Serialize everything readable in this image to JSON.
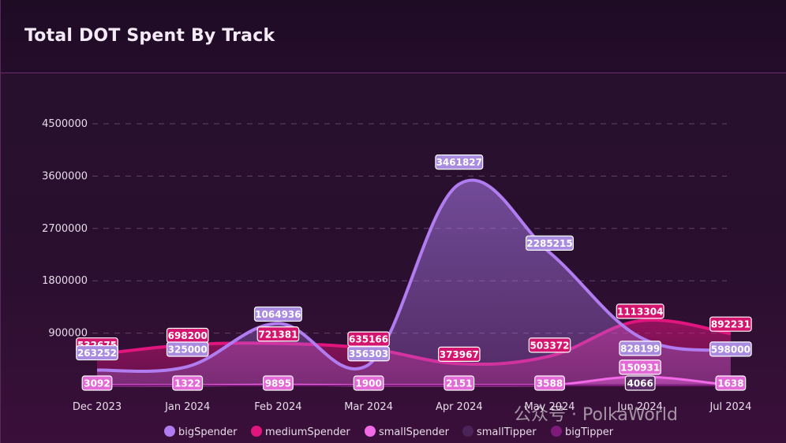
{
  "card": {
    "title": "Total DOT Spent By Track"
  },
  "watermark": "公众号 · PolkaWorld",
  "colors": {
    "bigSpender": "#b07cf0",
    "mediumSpender": "#e0157e",
    "smallSpender": "#f26ae8",
    "smallTipper": "#4a2458",
    "bigTipper": "#7e1a7c"
  },
  "chart_data": {
    "type": "area",
    "title": "Total DOT Spent By Track",
    "categories": [
      "Dec 2023",
      "Jan 2024",
      "Feb 2024",
      "Mar 2024",
      "Apr 2024",
      "May 2024",
      "Jun 2024",
      "Jul 2024"
    ],
    "ylim": [
      0,
      4500000
    ],
    "yticks": [
      "900000",
      "1800000",
      "2700000",
      "3600000",
      "4500000"
    ],
    "ytick_values": [
      900000,
      1800000,
      2700000,
      3600000,
      4500000
    ],
    "grid": true,
    "legend_position": "bottom",
    "series": [
      {
        "name": "bigSpender",
        "values": [
          263252,
          325000,
          1064936,
          356303,
          3461827,
          2285215,
          828199,
          598000
        ],
        "labels": [
          "263252",
          "325000",
          "1064936",
          "356303",
          "3461827",
          "2285215",
          "828199",
          "598000"
        ]
      },
      {
        "name": "mediumSpender",
        "values": [
          532675,
          698200,
          721381,
          635166,
          373967,
          503372,
          1113304,
          892231
        ],
        "labels": [
          "532675",
          "698200",
          "721381",
          "635166",
          "373967",
          "503372",
          "1113304",
          "892231"
        ]
      },
      {
        "name": "smallSpender",
        "values": [
          3092,
          1322,
          9895,
          1900,
          2151,
          3588,
          150931,
          1638
        ],
        "labels": [
          "3092",
          "1322",
          "9895",
          "1900",
          "2151",
          "3588",
          "150931",
          "1638"
        ]
      },
      {
        "name": "smallTipper",
        "values": [
          0,
          0,
          0,
          0,
          0,
          0,
          4066,
          0
        ],
        "labels": [
          "",
          "",
          "",
          "",
          "",
          "",
          "4066",
          ""
        ]
      },
      {
        "name": "bigTipper",
        "values": [
          0,
          0,
          0,
          0,
          0,
          0,
          0,
          0
        ],
        "labels": [
          "",
          "",
          "",
          "",
          "",
          "",
          "",
          ""
        ]
      }
    ]
  }
}
